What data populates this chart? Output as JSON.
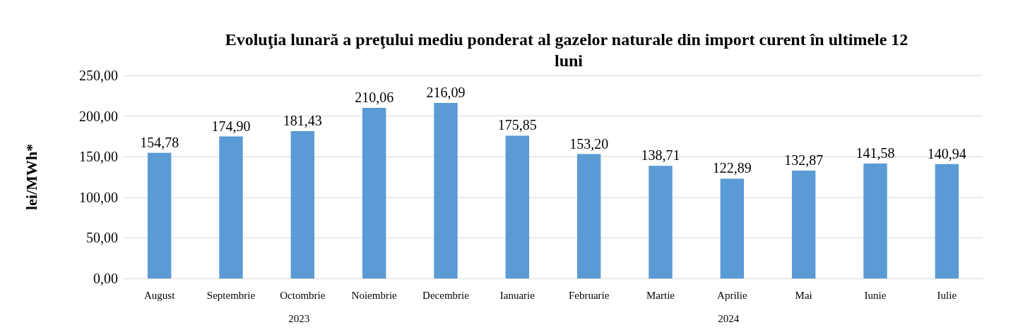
{
  "chart_data": {
    "type": "bar",
    "title": "Evoluţia lunară a preţului mediu ponderat al gazelor naturale din import curent în ultimele 12 luni",
    "ylabel": "lei/MWh*",
    "categories": [
      "August",
      "Septembrie",
      "Octombrie",
      "Noiembrie",
      "Decembrie",
      "Ianuarie",
      "Februarie",
      "Martie",
      "Aprilie",
      "Mai",
      "Iunie",
      "Iulie"
    ],
    "values": [
      154.78,
      174.9,
      181.43,
      210.06,
      216.09,
      175.85,
      153.2,
      138.71,
      122.89,
      132.87,
      141.58,
      140.94
    ],
    "value_labels": [
      "154,78",
      "174,90",
      "181,43",
      "210,06",
      "216,09",
      "175,85",
      "153,20",
      "138,71",
      "122,89",
      "132,87",
      "141,58",
      "140,94"
    ],
    "color": "#5b9bd5",
    "ylim": [
      0,
      250
    ],
    "yticks": [
      {
        "value": 0,
        "label": "0,00"
      },
      {
        "value": 50,
        "label": "50,00"
      },
      {
        "value": 100,
        "label": "100,00"
      },
      {
        "value": 150,
        "label": "150,00"
      },
      {
        "value": 200,
        "label": "200,00"
      },
      {
        "value": 250,
        "label": "250,00"
      }
    ],
    "grid": "y",
    "annotations": [
      "2023",
      "2024"
    ]
  }
}
